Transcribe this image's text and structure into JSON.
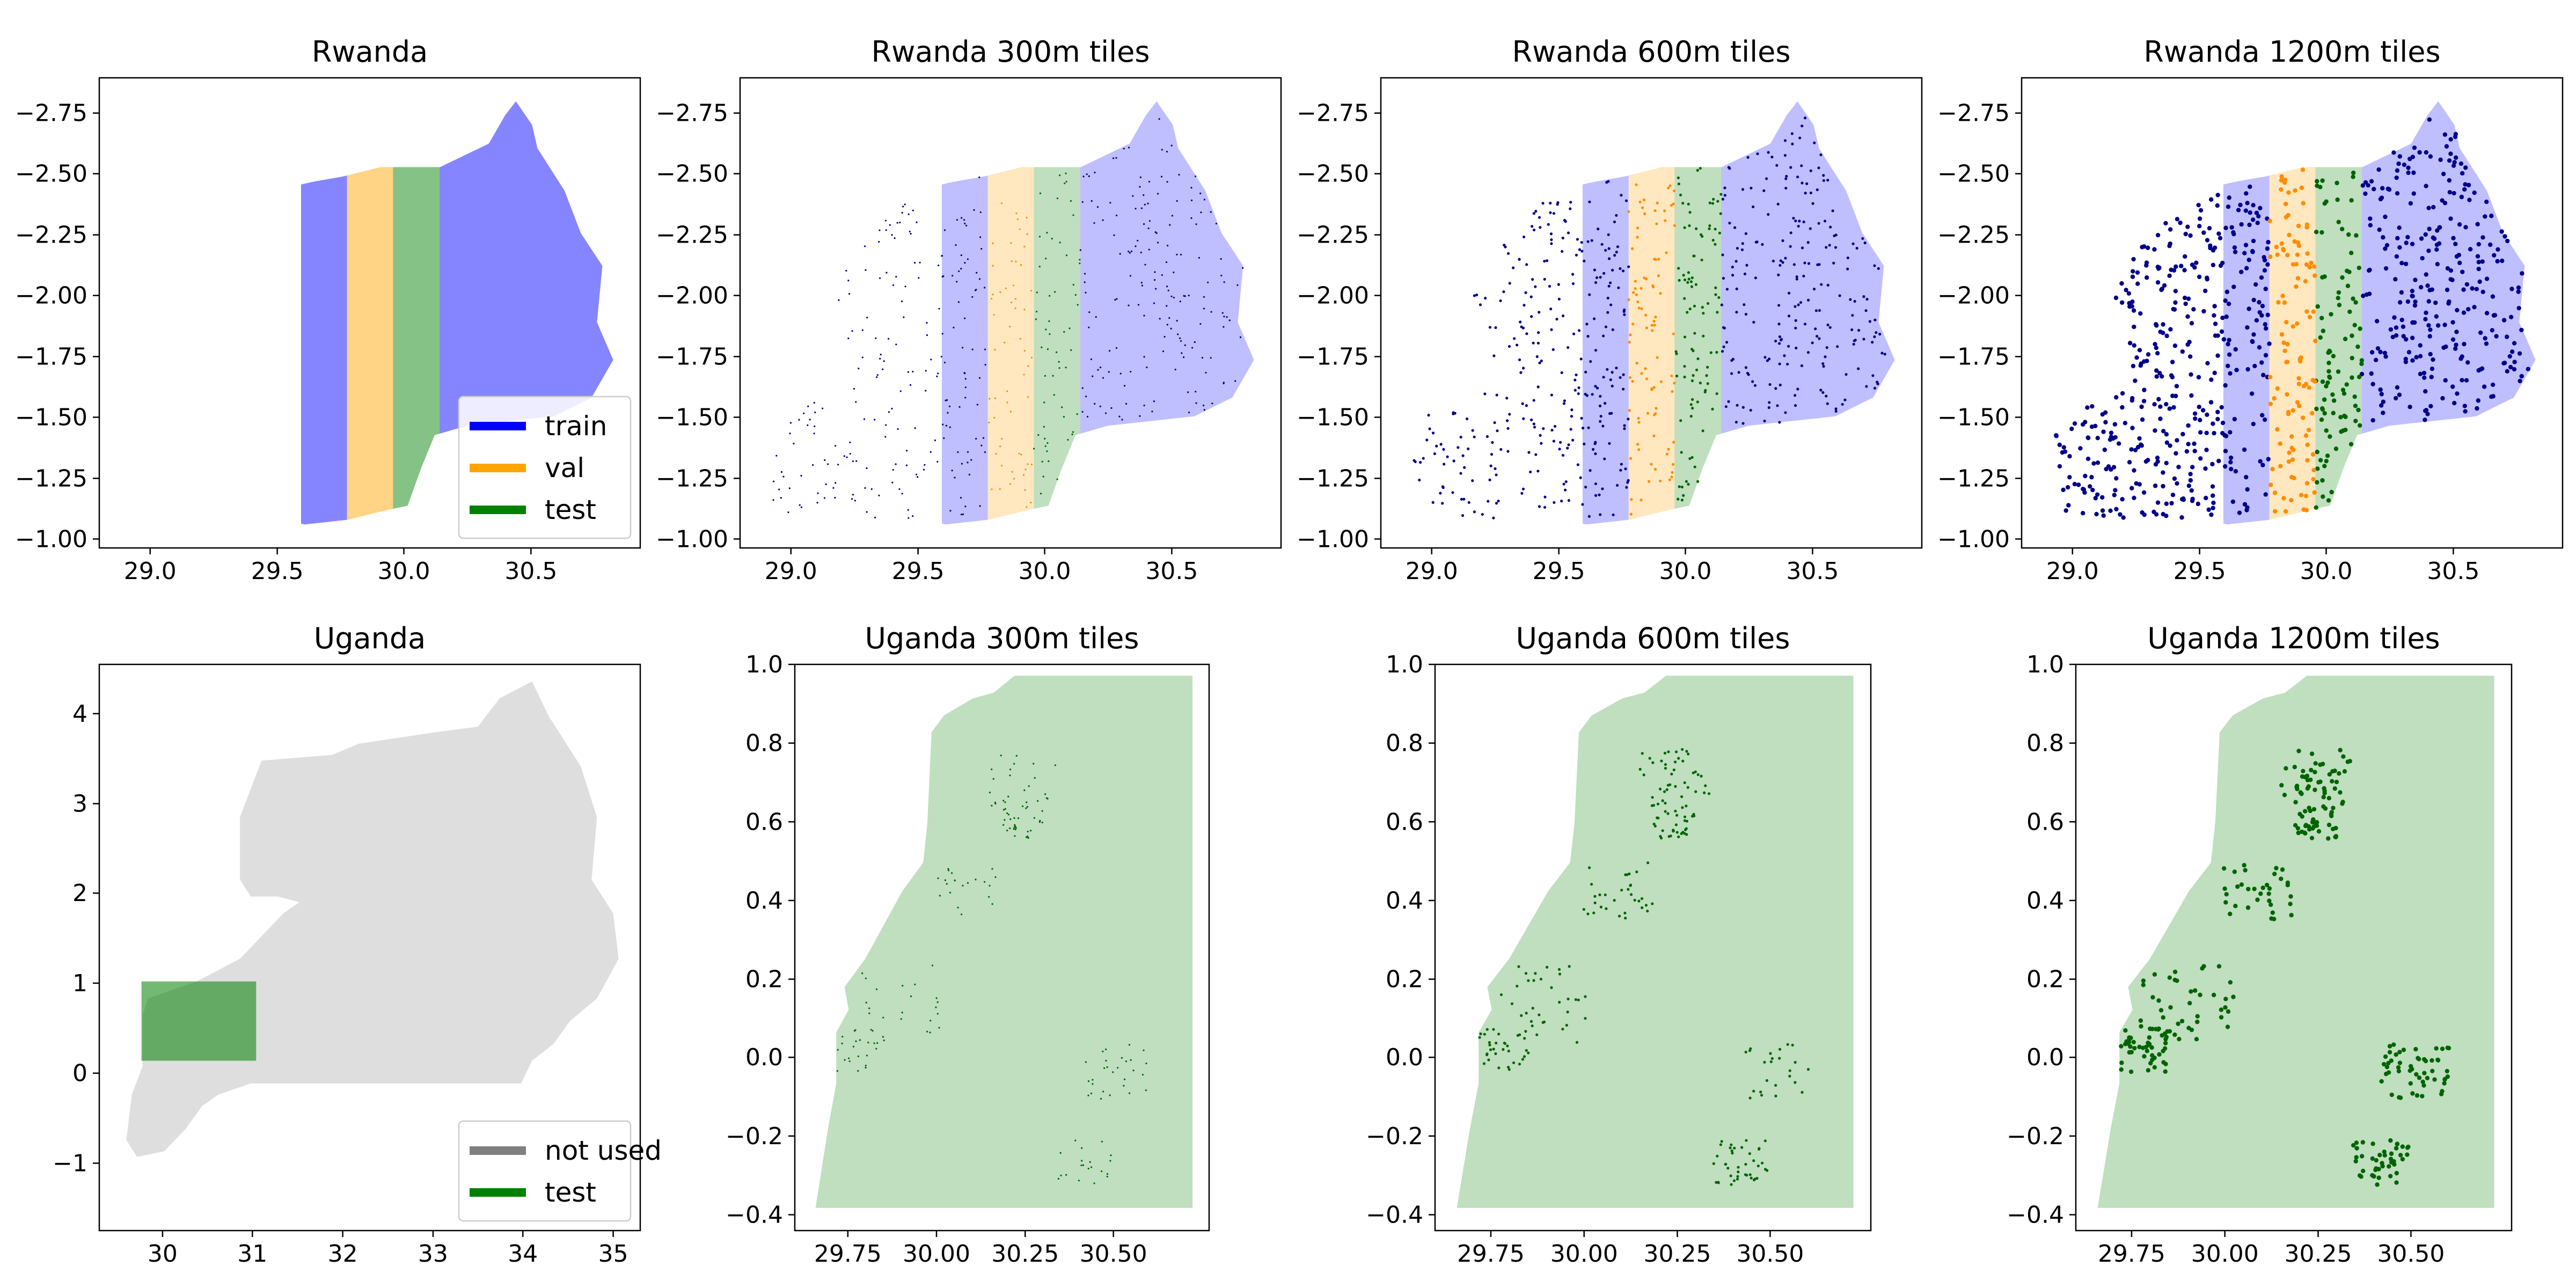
{
  "colors": {
    "train": "#0000ff",
    "val": "#ffa500",
    "test": "#008000",
    "not_used": "#808080",
    "point_train": "#00008b",
    "point_val": "#ff8c00",
    "point_test": "#006400"
  },
  "chart_data": [
    {
      "type": "map",
      "title": "Rwanda",
      "xlim": [
        28.8,
        30.93
      ],
      "ylim": [
        -2.9,
        -0.97
      ],
      "xticks": [
        "29.0",
        "29.5",
        "30.0",
        "30.5"
      ],
      "yticks": [
        "−1.00",
        "−1.25",
        "−1.50",
        "−1.75",
        "−2.00",
        "−2.25",
        "−2.50",
        "−2.75"
      ],
      "region": "rwanda",
      "fill_opacity": 0.48,
      "points": "none",
      "legend": {
        "position": "lower right",
        "entries": [
          {
            "label": "train",
            "color_key": "train"
          },
          {
            "label": "val",
            "color_key": "val"
          },
          {
            "label": "test",
            "color_key": "test"
          }
        ]
      }
    },
    {
      "type": "map",
      "title": "Rwanda 300m tiles",
      "xlim": [
        28.8,
        30.93
      ],
      "ylim": [
        -2.9,
        -0.97
      ],
      "xticks": [
        "29.0",
        "29.5",
        "30.0",
        "30.5"
      ],
      "yticks": [
        "−1.00",
        "−1.25",
        "−1.50",
        "−1.75",
        "−2.00",
        "−2.25",
        "−2.50",
        "−2.75"
      ],
      "region": "rwanda",
      "fill_opacity": 0.25,
      "points": "small"
    },
    {
      "type": "map",
      "title": "Rwanda 600m tiles",
      "xlim": [
        28.8,
        30.93
      ],
      "ylim": [
        -2.9,
        -0.97
      ],
      "xticks": [
        "29.0",
        "29.5",
        "30.0",
        "30.5"
      ],
      "yticks": [
        "−1.00",
        "−1.25",
        "−1.50",
        "−1.75",
        "−2.00",
        "−2.25",
        "−2.50",
        "−2.75"
      ],
      "region": "rwanda",
      "fill_opacity": 0.25,
      "points": "medium"
    },
    {
      "type": "map",
      "title": "Rwanda 1200m tiles",
      "xlim": [
        28.8,
        30.93
      ],
      "ylim": [
        -2.9,
        -0.97
      ],
      "xticks": [
        "29.0",
        "29.5",
        "30.0",
        "30.5"
      ],
      "yticks": [
        "−1.00",
        "−1.25",
        "−1.50",
        "−1.75",
        "−2.00",
        "−2.25",
        "−2.50",
        "−2.75"
      ],
      "region": "rwanda",
      "fill_opacity": 0.25,
      "points": "large"
    },
    {
      "type": "map",
      "title": "Uganda",
      "xlim": [
        29.3,
        35.3
      ],
      "ylim": [
        -1.75,
        4.55
      ],
      "xticks": [
        "30",
        "31",
        "32",
        "33",
        "34",
        "35"
      ],
      "yticks": [
        "−1",
        "0",
        "1",
        "2",
        "3",
        "4"
      ],
      "region": "uganda",
      "points": "none",
      "legend": {
        "position": "lower right",
        "entries": [
          {
            "label": "not used",
            "color_key": "not_used"
          },
          {
            "label": "test",
            "color_key": "test"
          }
        ]
      }
    },
    {
      "type": "map",
      "title": "Uganda 300m tiles",
      "xlim": [
        29.6,
        30.77
      ],
      "ylim": [
        -0.42,
        1.02
      ],
      "xticks": [
        "29.75",
        "30.00",
        "30.25",
        "30.50"
      ],
      "yticks": [
        "−0.4",
        "−0.2",
        "0.0",
        "0.2",
        "0.4",
        "0.6",
        "0.8",
        "1.0"
      ],
      "region": "uganda_zoom",
      "fill_opacity": 0.25,
      "points": "small"
    },
    {
      "type": "map",
      "title": "Uganda 600m tiles",
      "xlim": [
        29.6,
        30.77
      ],
      "ylim": [
        -0.42,
        1.02
      ],
      "xticks": [
        "29.75",
        "30.00",
        "30.25",
        "30.50"
      ],
      "yticks": [
        "−0.4",
        "−0.2",
        "0.0",
        "0.2",
        "0.4",
        "0.6",
        "0.8",
        "1.0"
      ],
      "region": "uganda_zoom",
      "fill_opacity": 0.25,
      "points": "medium"
    },
    {
      "type": "map",
      "title": "Uganda 1200m tiles",
      "xlim": [
        29.6,
        30.77
      ],
      "ylim": [
        -0.42,
        1.02
      ],
      "xticks": [
        "29.75",
        "30.00",
        "30.25",
        "30.50"
      ],
      "yticks": [
        "−0.4",
        "−0.2",
        "0.0",
        "0.2",
        "0.4",
        "0.6",
        "0.8",
        "1.0"
      ],
      "region": "uganda_zoom",
      "fill_opacity": 0.25,
      "points": "large"
    }
  ]
}
